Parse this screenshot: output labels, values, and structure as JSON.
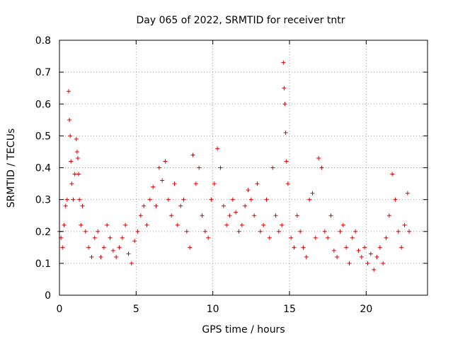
{
  "chart_data": {
    "type": "scatter",
    "title": "Day 065 of 2022, SRMTID for receiver tntr",
    "xlabel": "GPS time / hours",
    "ylabel": "SRMTID / TECUs",
    "xlim": [
      0,
      24
    ],
    "ylim": [
      0,
      0.8
    ],
    "xticks": [
      0,
      5,
      10,
      15,
      20
    ],
    "yticks": [
      0,
      0.1,
      0.2,
      0.3,
      0.4,
      0.5,
      0.6,
      0.7,
      0.8
    ],
    "grid": true,
    "marker": "plus",
    "color": "#e00000",
    "series": [
      {
        "name": "SRMTID",
        "x": [
          0.0,
          0.1,
          0.2,
          0.3,
          0.4,
          0.5,
          0.6,
          0.65,
          0.7,
          0.75,
          0.8,
          0.9,
          1.0,
          1.1,
          1.15,
          1.2,
          1.25,
          1.3,
          1.4,
          1.5,
          1.7,
          1.9,
          2.1,
          2.3,
          2.5,
          2.7,
          2.9,
          3.1,
          3.3,
          3.5,
          3.7,
          3.9,
          4.1,
          4.3,
          4.5,
          4.7,
          4.9,
          5.1,
          5.3,
          5.5,
          5.7,
          5.9,
          6.1,
          6.3,
          6.5,
          6.7,
          6.9,
          7.1,
          7.3,
          7.5,
          7.7,
          7.9,
          8.1,
          8.3,
          8.5,
          8.7,
          8.9,
          9.1,
          9.3,
          9.5,
          9.7,
          9.9,
          10.1,
          10.3,
          10.5,
          10.7,
          10.9,
          11.1,
          11.3,
          11.5,
          11.7,
          11.9,
          12.1,
          12.3,
          12.5,
          12.7,
          12.9,
          13.1,
          13.3,
          13.5,
          13.7,
          13.9,
          14.1,
          14.3,
          14.5,
          14.6,
          14.65,
          14.7,
          14.75,
          14.8,
          14.9,
          15.1,
          15.3,
          15.5,
          15.7,
          15.9,
          16.1,
          16.3,
          16.5,
          16.7,
          16.9,
          17.1,
          17.3,
          17.5,
          17.7,
          17.9,
          18.1,
          18.3,
          18.5,
          18.7,
          18.9,
          19.1,
          19.3,
          19.5,
          19.7,
          19.9,
          20.1,
          20.3,
          20.5,
          20.7,
          20.9,
          21.1,
          21.3,
          21.5,
          21.7,
          21.9,
          22.1,
          22.3,
          22.5,
          22.7,
          22.8
        ],
        "y": [
          0.2,
          0.18,
          0.15,
          0.22,
          0.28,
          0.3,
          0.64,
          0.55,
          0.5,
          0.42,
          0.35,
          0.3,
          0.38,
          0.49,
          0.45,
          0.43,
          0.38,
          0.3,
          0.22,
          0.28,
          0.2,
          0.15,
          0.12,
          0.18,
          0.2,
          0.12,
          0.15,
          0.22,
          0.18,
          0.14,
          0.12,
          0.15,
          0.18,
          0.22,
          0.13,
          0.1,
          0.17,
          0.2,
          0.25,
          0.28,
          0.22,
          0.3,
          0.34,
          0.28,
          0.4,
          0.36,
          0.42,
          0.3,
          0.25,
          0.35,
          0.22,
          0.28,
          0.3,
          0.2,
          0.15,
          0.44,
          0.35,
          0.4,
          0.25,
          0.2,
          0.18,
          0.3,
          0.35,
          0.46,
          0.4,
          0.28,
          0.22,
          0.25,
          0.3,
          0.26,
          0.2,
          0.22,
          0.28,
          0.33,
          0.3,
          0.25,
          0.35,
          0.2,
          0.22,
          0.3,
          0.18,
          0.4,
          0.25,
          0.2,
          0.22,
          0.73,
          0.65,
          0.6,
          0.51,
          0.42,
          0.35,
          0.18,
          0.15,
          0.25,
          0.2,
          0.15,
          0.12,
          0.3,
          0.32,
          0.18,
          0.43,
          0.4,
          0.2,
          0.18,
          0.25,
          0.14,
          0.12,
          0.2,
          0.22,
          0.15,
          0.1,
          0.18,
          0.2,
          0.14,
          0.12,
          0.15,
          0.1,
          0.13,
          0.08,
          0.12,
          0.15,
          0.1,
          0.18,
          0.25,
          0.38,
          0.3,
          0.2,
          0.15,
          0.22,
          0.32,
          0.2
        ]
      }
    ]
  }
}
